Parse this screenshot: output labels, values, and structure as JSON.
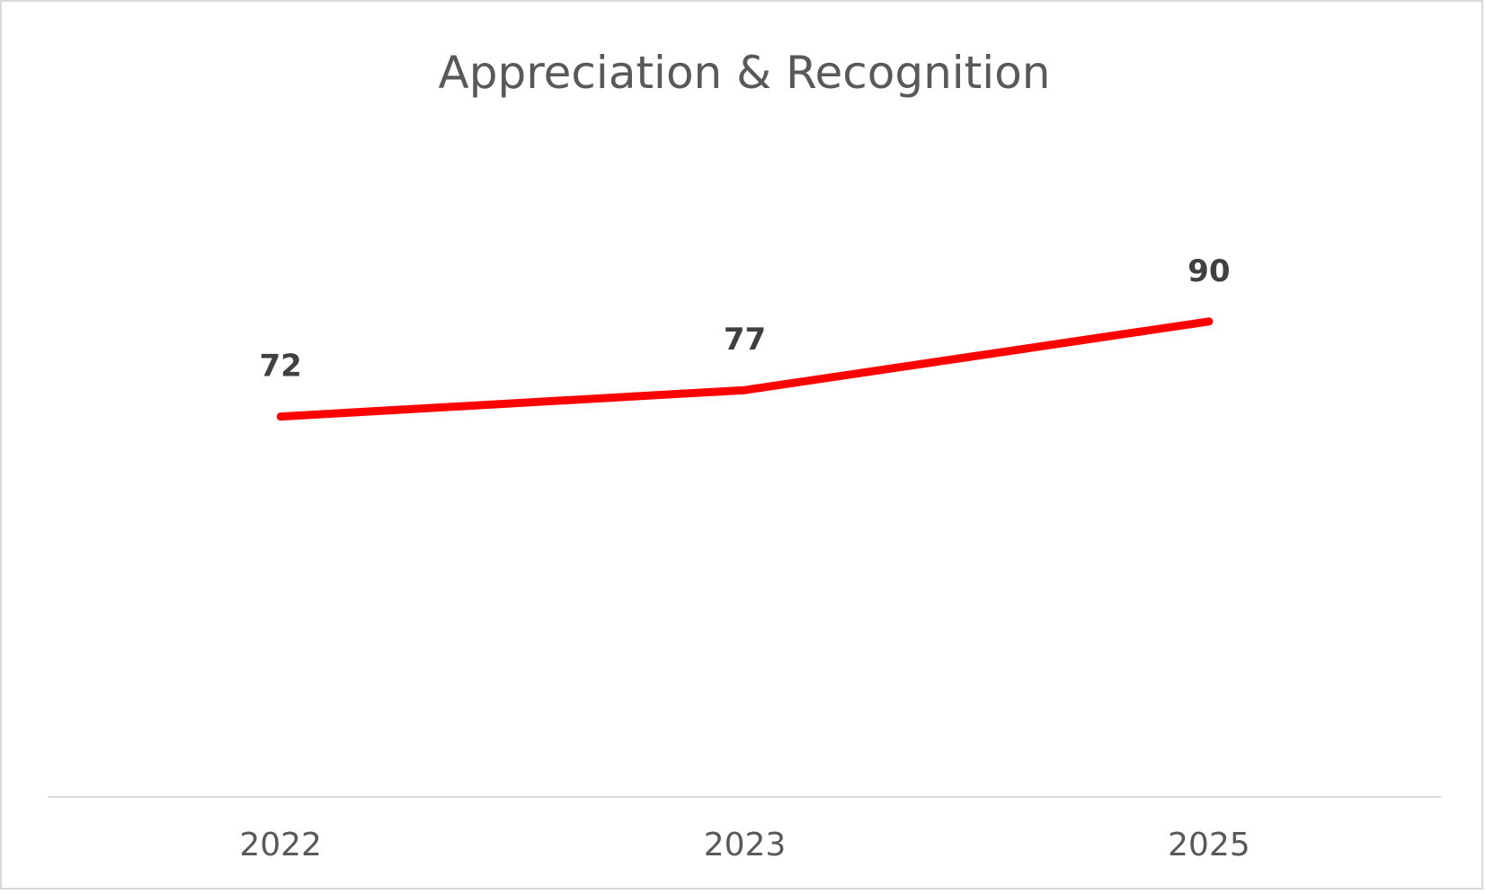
{
  "chart_data": {
    "type": "line",
    "title": "Appreciation & Recognition",
    "categories": [
      "2022",
      "2023",
      "2025"
    ],
    "series": [
      {
        "values": [
          72,
          77,
          90
        ],
        "color": "#ff0000"
      }
    ],
    "data_labels": [
      "72",
      "77",
      "90"
    ],
    "ylim": [
      0,
      125
    ],
    "grid": false,
    "legend": "none",
    "axis_color": "#d9d9d9"
  }
}
